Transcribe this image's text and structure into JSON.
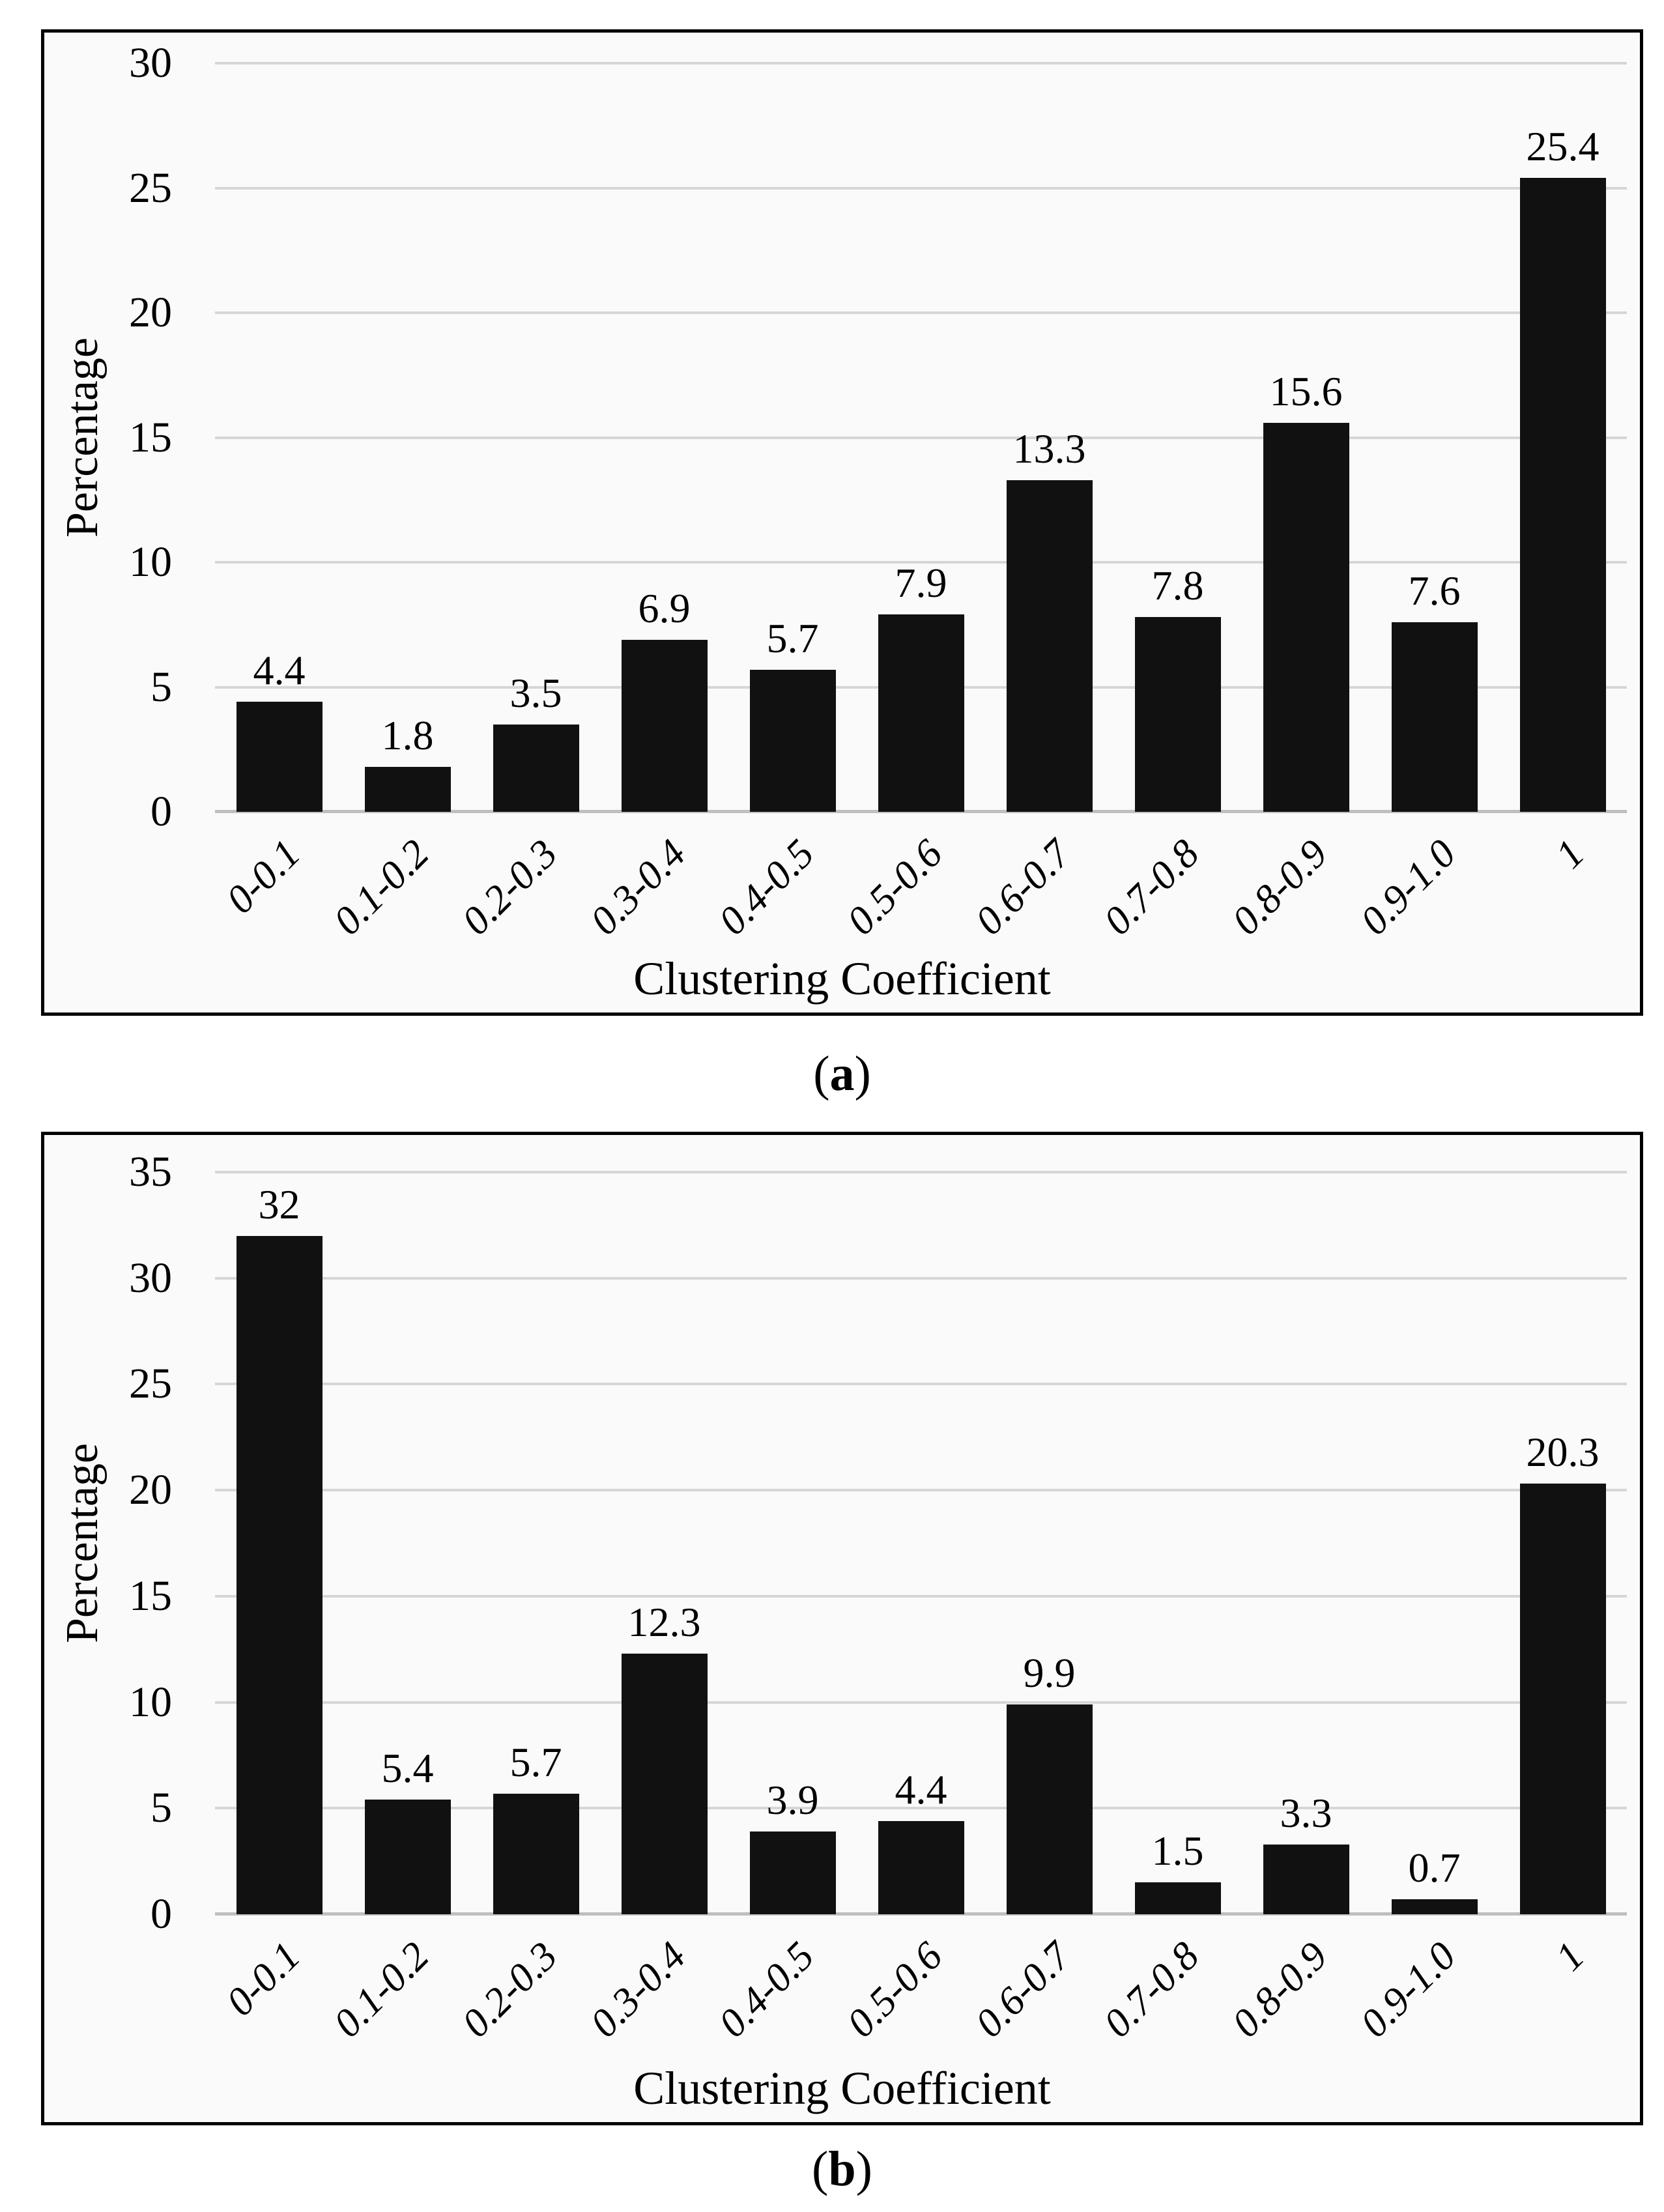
{
  "colors": {
    "bar": "#111111",
    "gridline": "#d6d6d6",
    "baseline": "#bfbfbf",
    "frame_border": "#000000",
    "panel_background": "#fafafa",
    "text": "#000000"
  },
  "chart_data": [
    {
      "id": "a",
      "type": "bar",
      "title": "",
      "categories": [
        "0-0.1",
        "0.1-0.2",
        "0.2-0.3",
        "0.3-0.4",
        "0.4-0.5",
        "0.5-0.6",
        "0.6-0.7",
        "0.7-0.8",
        "0.8-0.9",
        "0.9-1.0",
        "1"
      ],
      "values": [
        4.4,
        1.8,
        3.5,
        6.9,
        5.7,
        7.9,
        13.3,
        7.8,
        15.6,
        7.6,
        25.4
      ],
      "value_labels": [
        "4.4",
        "1.8",
        "3.5",
        "6.9",
        "5.7",
        "7.9",
        "13.3",
        "7.8",
        "15.6",
        "7.6",
        "25.4"
      ],
      "xlabel": "Clustering Coefficient",
      "ylabel": "Percentage",
      "ylim": [
        0,
        30
      ],
      "yticks": [
        0,
        5,
        10,
        15,
        20,
        25,
        30
      ],
      "grid": true,
      "legend_position": "none",
      "caption_open": "(",
      "caption_letter": "a",
      "caption_close": ")"
    },
    {
      "id": "b",
      "type": "bar",
      "title": "",
      "categories": [
        "0-0.1",
        "0.1-0.2",
        "0.2-0.3",
        "0.3-0.4",
        "0.4-0.5",
        "0.5-0.6",
        "0.6-0.7",
        "0.7-0.8",
        "0.8-0.9",
        "0.9-1.0",
        "1"
      ],
      "values": [
        32,
        5.4,
        5.7,
        12.3,
        3.9,
        4.4,
        9.9,
        1.5,
        3.3,
        0.7,
        20.3
      ],
      "value_labels": [
        "32",
        "5.4",
        "5.7",
        "12.3",
        "3.9",
        "4.4",
        "9.9",
        "1.5",
        "3.3",
        "0.7",
        "20.3"
      ],
      "xlabel": "Clustering Coefficient",
      "ylabel": "Percentage",
      "ylim": [
        0,
        35
      ],
      "yticks": [
        0,
        5,
        10,
        15,
        20,
        25,
        30,
        35
      ],
      "grid": true,
      "legend_position": "none",
      "caption_open": "(",
      "caption_letter": "b",
      "caption_close": ")"
    }
  ]
}
